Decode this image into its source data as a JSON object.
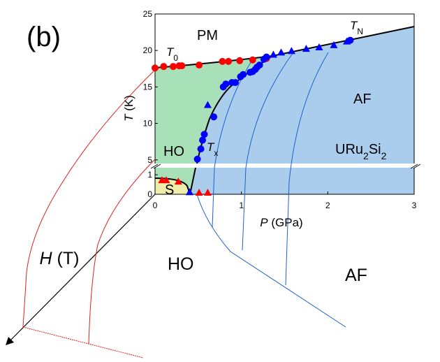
{
  "chart_data": {
    "type": "scatter",
    "title": "(b)",
    "x_label": {
      "var": "P",
      "unit": "(GPa)"
    },
    "y_label": {
      "var": "T",
      "unit": "(K)"
    },
    "z_label": {
      "var": "H",
      "unit": "(T)"
    },
    "xlim": [
      0,
      3
    ],
    "xticks": [
      0,
      1,
      2,
      3
    ],
    "ylim": [
      4.5,
      25
    ],
    "yticks": [
      5,
      10,
      15,
      20,
      25
    ],
    "y_break": {
      "ylim": [
        0,
        1.36
      ],
      "yticks": [
        0,
        1
      ]
    },
    "series": [
      {
        "marker": "circle",
        "color": "#ff0000",
        "panel": "upper",
        "x": [
          0,
          0.1,
          0.21,
          0.28,
          0.31,
          0.51,
          0.78,
          0.85,
          0.98,
          1.13,
          1.29
        ],
        "values": [
          17.6,
          17.8,
          17.8,
          17.9,
          17.9,
          18.0,
          18.5,
          18.5,
          18.6,
          18.7,
          18.9
        ]
      },
      {
        "marker": "triangle",
        "color": "#0000ff",
        "panel": "upper",
        "x": [
          0.61,
          1.37,
          1.46,
          1.58,
          1.75,
          1.9,
          2.07,
          2.22
        ],
        "values": [
          12.5,
          19.4,
          19.7,
          19.9,
          20.2,
          20.4,
          20.7,
          21.2
        ]
      },
      {
        "marker": "circle",
        "color": "#0000ff",
        "panel": "upper",
        "x": [
          0.49,
          0.53,
          0.55,
          0.57,
          0.68,
          0.79,
          0.82,
          0.89,
          0.93,
          0.99,
          1.02,
          1.1,
          1.13,
          1.16,
          1.18,
          1.21,
          1.26,
          1.29,
          2.26
        ],
        "values": [
          5.1,
          6.5,
          7.7,
          8.5,
          10.9,
          15.0,
          15.4,
          15.6,
          15.6,
          16.4,
          16.7,
          17.0,
          17.1,
          17.4,
          17.7,
          18.0,
          18.8,
          19.1,
          21.4
        ]
      },
      {
        "marker": "triangle",
        "color": "#ff0000",
        "panel": "lower",
        "x": [
          0.08,
          0.13,
          0.27,
          0.51,
          0.61
        ],
        "values": [
          0.71,
          0.71,
          0.64,
          0.07,
          0.07
        ]
      },
      {
        "marker": "triangle",
        "color": "#0000ff",
        "panel": "lower",
        "x": [
          0.4
        ],
        "values": [
          0.1
        ]
      }
    ],
    "annotations": [
      {
        "parts": [
          "PM"
        ]
      },
      {
        "parts": [
          "T",
          "0"
        ],
        "italic": true
      },
      {
        "parts": [
          "T",
          "N"
        ],
        "italic": true
      },
      {
        "parts": [
          "AF"
        ]
      },
      {
        "parts": [
          "HO"
        ]
      },
      {
        "parts": [
          "T",
          "x"
        ],
        "italic": true
      },
      {
        "parts": [
          "URu",
          "2",
          "Si",
          "2"
        ]
      },
      {
        "parts": [
          "S"
        ]
      },
      {
        "parts": [
          "HO"
        ]
      },
      {
        "parts": [
          "AF"
        ]
      }
    ]
  }
}
